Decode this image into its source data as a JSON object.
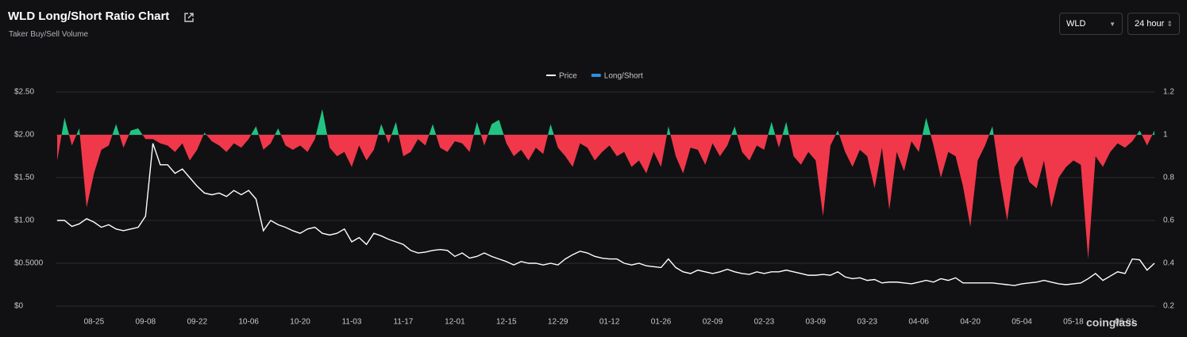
{
  "chart_data": {
    "type": "line-area",
    "title": "WLD Long/Short Ratio Chart",
    "subtitle": "Taker Buy/Sell Volume",
    "controls": {
      "symbol": "WLD",
      "interval": "24 hour"
    },
    "watermark": "coinglass",
    "categories": [
      null,
      null,
      null,
      null,
      null,
      "08-25",
      null,
      null,
      null,
      null,
      null,
      null,
      "09-08",
      null,
      null,
      null,
      null,
      null,
      null,
      "09-22",
      null,
      null,
      null,
      null,
      null,
      null,
      "10-06",
      null,
      null,
      null,
      null,
      null,
      null,
      "10-20",
      null,
      null,
      null,
      null,
      null,
      null,
      "11-03",
      null,
      null,
      null,
      null,
      null,
      null,
      "11-17",
      null,
      null,
      null,
      null,
      null,
      null,
      "12-01",
      null,
      null,
      null,
      null,
      null,
      null,
      "12-15",
      null,
      null,
      null,
      null,
      null,
      null,
      "12-29",
      null,
      null,
      null,
      null,
      null,
      null,
      "01-12",
      null,
      null,
      null,
      null,
      null,
      null,
      "01-26",
      null,
      null,
      null,
      null,
      null,
      null,
      "02-09",
      null,
      null,
      null,
      null,
      null,
      null,
      "02-23",
      null,
      null,
      null,
      null,
      null,
      null,
      "03-09",
      null,
      null,
      null,
      null,
      null,
      null,
      "03-23",
      null,
      null,
      null,
      null,
      null,
      null,
      "04-06",
      null,
      null,
      null,
      null,
      null,
      null,
      "04-20",
      null,
      null,
      null,
      null,
      null,
      null,
      "05-04",
      null,
      null,
      null,
      null,
      null,
      null,
      "05-18",
      null,
      null,
      null,
      null,
      null,
      null,
      "06-01",
      null,
      null,
      null,
      null
    ],
    "series": [
      {
        "name": "Price",
        "color": "#ffffff",
        "axis": "y",
        "values": [
          1.0,
          1.0,
          0.93,
          0.96,
          1.02,
          0.98,
          0.92,
          0.95,
          0.9,
          0.88,
          0.9,
          0.92,
          1.05,
          1.9,
          1.65,
          1.65,
          1.55,
          1.6,
          1.5,
          1.4,
          1.32,
          1.3,
          1.32,
          1.28,
          1.35,
          1.3,
          1.35,
          1.25,
          0.88,
          1.0,
          0.95,
          0.92,
          0.88,
          0.85,
          0.9,
          0.92,
          0.85,
          0.83,
          0.85,
          0.9,
          0.75,
          0.8,
          0.72,
          0.85,
          0.82,
          0.78,
          0.75,
          0.72,
          0.65,
          0.62,
          0.63,
          0.65,
          0.66,
          0.65,
          0.58,
          0.62,
          0.56,
          0.58,
          0.62,
          0.58,
          0.55,
          0.52,
          0.48,
          0.52,
          0.5,
          0.5,
          0.48,
          0.5,
          0.48,
          0.55,
          0.6,
          0.64,
          0.62,
          0.58,
          0.56,
          0.55,
          0.55,
          0.5,
          0.48,
          0.5,
          0.47,
          0.46,
          0.45,
          0.55,
          0.45,
          0.4,
          0.38,
          0.42,
          0.4,
          0.38,
          0.4,
          0.43,
          0.4,
          0.38,
          0.37,
          0.4,
          0.38,
          0.4,
          0.4,
          0.42,
          0.4,
          0.38,
          0.36,
          0.36,
          0.37,
          0.36,
          0.4,
          0.34,
          0.32,
          0.33,
          0.3,
          0.31,
          0.27,
          0.28,
          0.28,
          0.27,
          0.26,
          0.28,
          0.3,
          0.28,
          0.32,
          0.3,
          0.33,
          0.27,
          0.27,
          0.27,
          0.27,
          0.27,
          0.26,
          0.25,
          0.24,
          0.26,
          0.27,
          0.28,
          0.3,
          0.28,
          0.26,
          0.25,
          0.26,
          0.27,
          0.32,
          0.38,
          0.3,
          0.35,
          0.4,
          0.38,
          0.55,
          0.54,
          0.42,
          0.5
        ]
      },
      {
        "name": "Long/Short",
        "color": "#2f8fe0",
        "axis": "y2",
        "up_color": "#22c382",
        "down_color": "#f0384a",
        "baseline": 1,
        "values": [
          0.88,
          1.08,
          0.95,
          1.03,
          0.66,
          0.82,
          0.93,
          0.95,
          1.05,
          0.94,
          1.02,
          1.03,
          0.98,
          0.98,
          0.96,
          0.95,
          0.92,
          0.96,
          0.88,
          0.93,
          1.01,
          0.97,
          0.95,
          0.92,
          0.96,
          0.94,
          0.98,
          1.04,
          0.93,
          0.96,
          1.03,
          0.95,
          0.93,
          0.95,
          0.92,
          0.98,
          1.12,
          0.94,
          0.9,
          0.92,
          0.85,
          0.95,
          0.88,
          0.93,
          1.05,
          0.96,
          1.06,
          0.9,
          0.92,
          0.98,
          0.95,
          1.05,
          0.94,
          0.92,
          0.97,
          0.96,
          0.92,
          1.06,
          0.95,
          1.05,
          1.07,
          0.96,
          0.9,
          0.93,
          0.88,
          0.94,
          0.91,
          1.05,
          0.94,
          0.9,
          0.85,
          0.96,
          0.94,
          0.88,
          0.92,
          0.95,
          0.9,
          0.92,
          0.85,
          0.88,
          0.82,
          0.92,
          0.85,
          1.04,
          0.9,
          0.82,
          0.94,
          0.93,
          0.86,
          0.96,
          0.9,
          0.95,
          1.04,
          0.92,
          0.88,
          0.95,
          0.93,
          1.06,
          0.94,
          1.06,
          0.9,
          0.86,
          0.92,
          0.88,
          0.62,
          0.95,
          1.02,
          0.92,
          0.85,
          0.93,
          0.9,
          0.75,
          0.94,
          0.65,
          0.92,
          0.83,
          0.97,
          0.92,
          1.08,
          0.95,
          0.8,
          0.92,
          0.9,
          0.76,
          0.57,
          0.88,
          0.95,
          1.04,
          0.8,
          0.6,
          0.85,
          0.9,
          0.78,
          0.75,
          0.88,
          0.66,
          0.8,
          0.85,
          0.88,
          0.86,
          0.42,
          0.9,
          0.85,
          0.92,
          0.96,
          0.94,
          0.97,
          1.02,
          0.95,
          1.02
        ]
      }
    ],
    "ylim": [
      0,
      2.5
    ],
    "yticks": [
      {
        "value": 0,
        "label": "$0"
      },
      {
        "value": 0.5,
        "label": "$0.5000"
      },
      {
        "value": 1,
        "label": "$1.00"
      },
      {
        "value": 1.5,
        "label": "$1.50"
      },
      {
        "value": 2,
        "label": "$2.00"
      },
      {
        "value": 2.5,
        "label": "$2.50"
      }
    ],
    "y2lim": [
      0.2,
      1.2
    ],
    "y2ticks": [
      0.2,
      0.4,
      0.6,
      0.8,
      1,
      1.2
    ],
    "grid": true
  }
}
